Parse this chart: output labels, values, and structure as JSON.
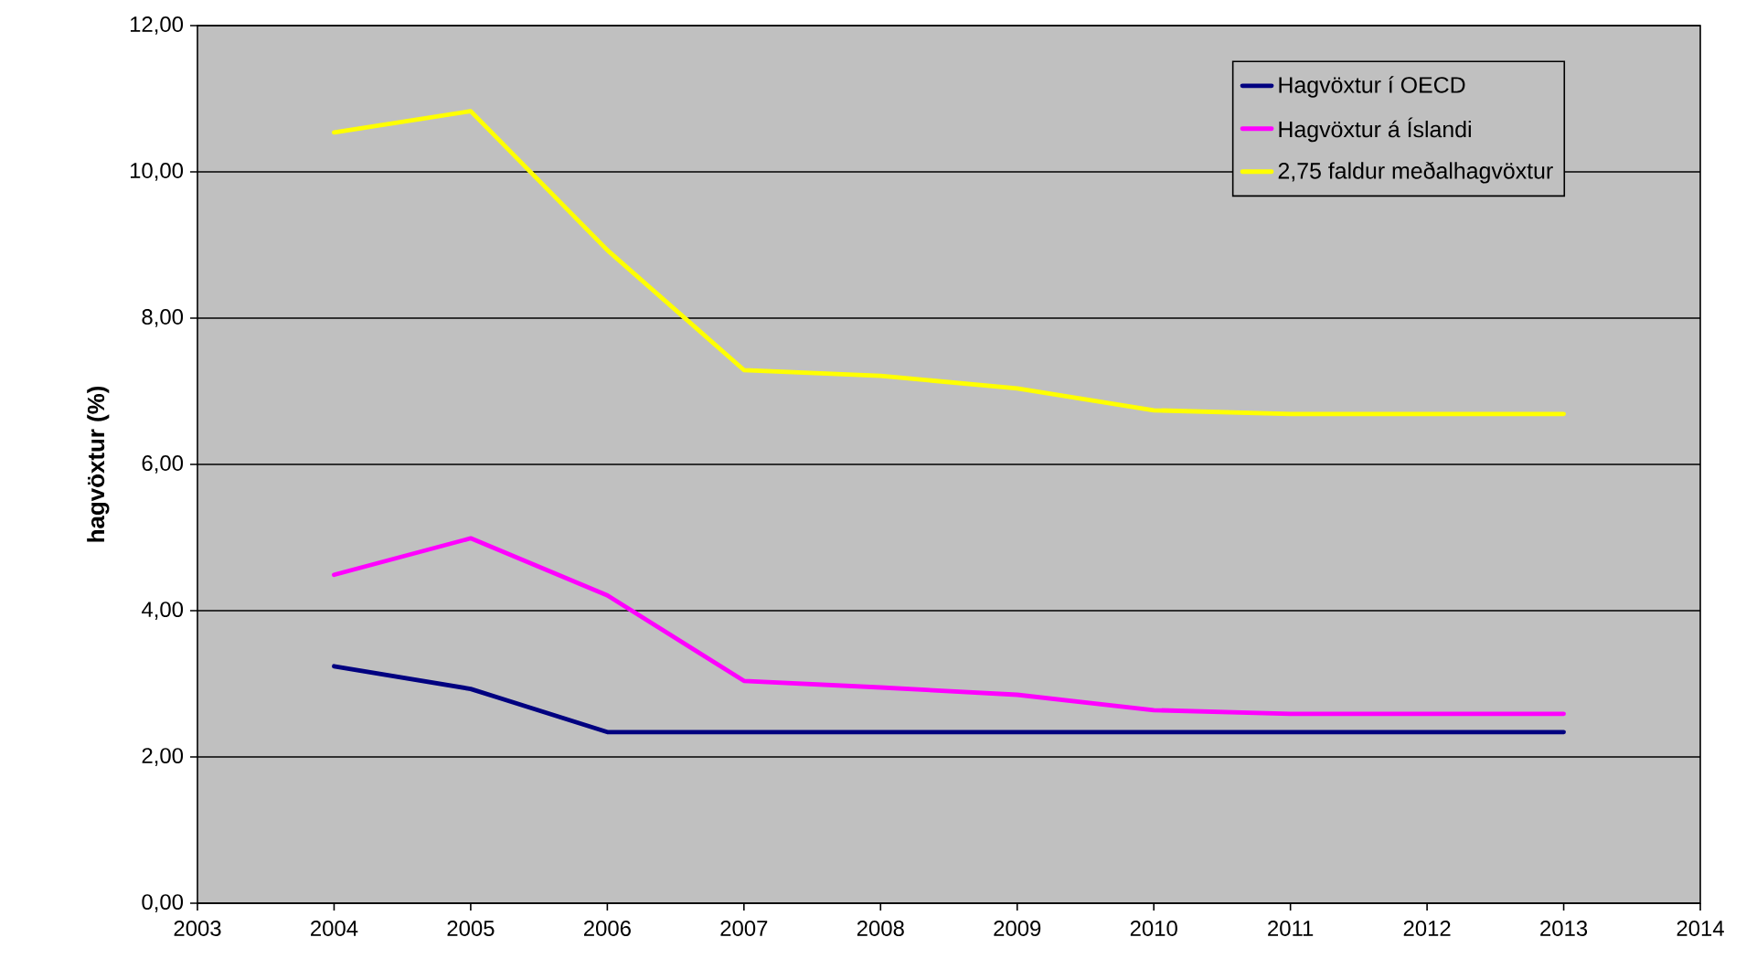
{
  "chart_data": {
    "type": "line",
    "ylabel": "hagvöxtur (%)",
    "x": [
      2004,
      2005,
      2006,
      2007,
      2008,
      2009,
      2010,
      2011,
      2012,
      2013
    ],
    "series": [
      {
        "name": "Hagvöxtur í OECD",
        "color": "#000080",
        "values": [
          3.24,
          2.93,
          2.34,
          2.34,
          2.34,
          2.34,
          2.34,
          2.34,
          2.34,
          2.34
        ]
      },
      {
        "name": "Hagvöxtur á Íslandi",
        "color": "#ff00ff",
        "values": [
          4.49,
          4.99,
          4.21,
          3.04,
          2.95,
          2.85,
          2.64,
          2.59,
          2.59,
          2.59
        ]
      },
      {
        "name": "2,75 faldur meðalhagvöxtur",
        "color": "#ffff00",
        "values": [
          10.54,
          10.83,
          8.93,
          7.29,
          7.21,
          7.04,
          6.74,
          6.69,
          6.69,
          6.69
        ]
      }
    ],
    "xlim": [
      2003,
      2014
    ],
    "xticks": [
      2003,
      2004,
      2005,
      2006,
      2007,
      2008,
      2009,
      2010,
      2011,
      2012,
      2013,
      2014
    ],
    "ylim": [
      0,
      12
    ],
    "yticks": [
      {
        "value": 0,
        "label": "0,00"
      },
      {
        "value": 2,
        "label": "2,00"
      },
      {
        "value": 4,
        "label": "4,00"
      },
      {
        "value": 6,
        "label": "6,00"
      },
      {
        "value": 8,
        "label": "8,00"
      },
      {
        "value": 10,
        "label": "10,00"
      },
      {
        "value": 12,
        "label": "12,00"
      }
    ],
    "grid": "y",
    "legend": "top right",
    "marker": "none",
    "line_style": "solid"
  }
}
